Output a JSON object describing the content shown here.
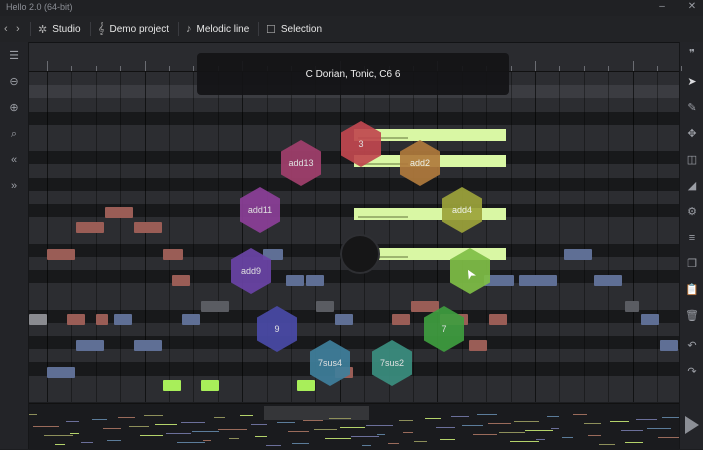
{
  "window": {
    "title": "Hello 2.0 (64-bit)"
  },
  "toolbar": {
    "studio": "Studio",
    "project": "Demo project",
    "melodic": "Melodic line",
    "selection": "Selection"
  },
  "tooltip": {
    "text": "C Dorian, Tonic, C6 6"
  },
  "chords": [
    {
      "label": "3",
      "color": "#c0474f"
    },
    {
      "label": "add13",
      "color": "#a23f6d"
    },
    {
      "label": "add2",
      "color": "#b07a3c"
    },
    {
      "label": "add11",
      "color": "#8d3f98"
    },
    {
      "label": "add4",
      "color": "#9da33a"
    },
    {
      "label": "add9",
      "color": "#6b44a6"
    },
    {
      "label": "",
      "color": "#7fbe45"
    },
    {
      "label": "9",
      "color": "#4a4aa8"
    },
    {
      "label": "7",
      "color": "#3f9e3f"
    },
    {
      "label": "7sus4",
      "color": "#3f7f9c"
    },
    {
      "label": "7sus2",
      "color": "#3b8f7f"
    }
  ],
  "colors": {
    "lane": "#d9f7a4",
    "note_red": "#9a5d56",
    "note_blue": "#5f6f95",
    "note_grey": "#5a5c62",
    "note_green": "#a8ee5a"
  }
}
